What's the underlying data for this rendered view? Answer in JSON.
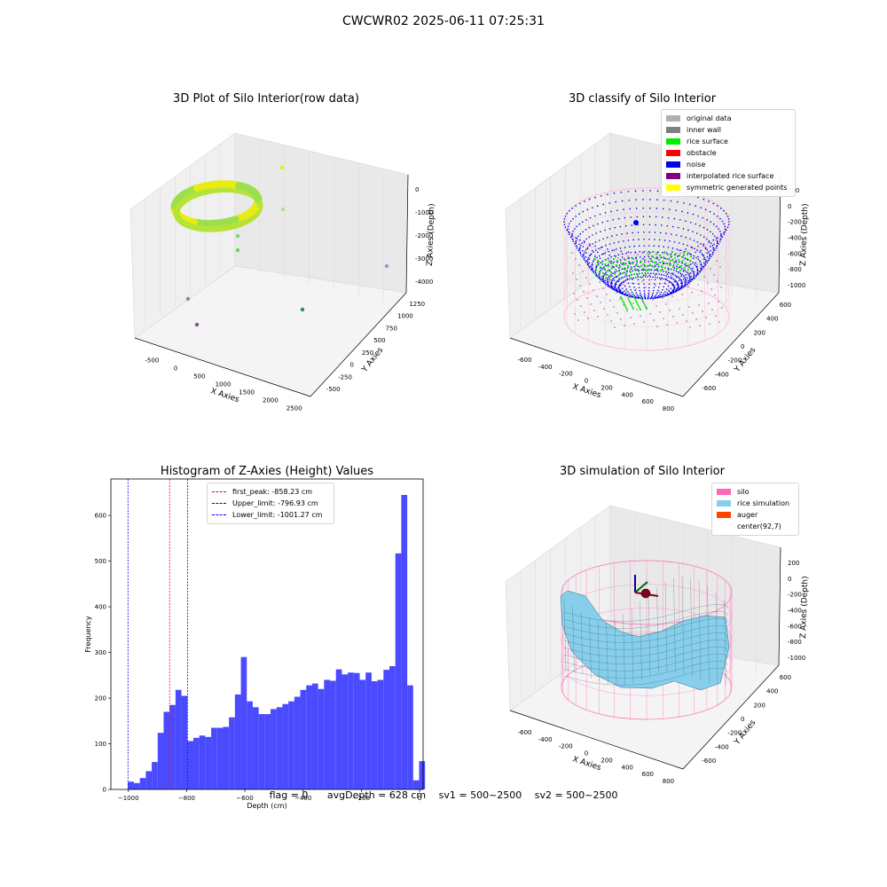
{
  "suptitle": "CWCWR02 2025-06-11 07:25:31",
  "colors": {
    "original": "#b0b0b0",
    "inner_wall": "#808080",
    "rice_surface": "#00ee00",
    "obstacle": "#ff0000",
    "noise": "#0000ee",
    "interpolated": "#800080",
    "symmetric": "#ffff00",
    "silo": "#ff69b4",
    "rice_sim": "#87ceeb",
    "auger": "#ff4500",
    "hist_bar": "#4a4aff",
    "peak_line": "#ff0000",
    "limit_line": "#0000ff"
  },
  "panels": {
    "raw": {
      "title": "3D Plot of Silo Interior(row data)",
      "xlabel": "X Axies",
      "ylabel": "Y Axies",
      "zlabel": "Z Axies (Depth)",
      "xticks": [
        "-500",
        "0",
        "500",
        "1000",
        "1500",
        "2000",
        "2500"
      ],
      "yticks": [
        "-500",
        "-250",
        "0",
        "250",
        "500",
        "750",
        "1000",
        "1250"
      ],
      "zticks": [
        "0",
        "-1000",
        "-2000",
        "-3000",
        "-4000"
      ]
    },
    "classify": {
      "title": "3D classify of Silo Interior",
      "xlabel": "X Axies",
      "ylabel": "Y Axies",
      "zlabel": "Z Axies (Depth)",
      "xticks": [
        "-600",
        "-400",
        "-200",
        "0",
        "200",
        "400",
        "600",
        "800"
      ],
      "yticks": [
        "-600",
        "-400",
        "-200",
        "0",
        "200",
        "400",
        "600"
      ],
      "zticks": [
        "200",
        "0",
        "-200",
        "-400",
        "-600",
        "-800",
        "-1000"
      ],
      "legend": [
        {
          "label": "original data",
          "color": "#b0b0b0"
        },
        {
          "label": "inner wall",
          "color": "#808080"
        },
        {
          "label": "rice surface",
          "color": "#00ee00"
        },
        {
          "label": "obstacle",
          "color": "#ff0000"
        },
        {
          "label": "noise",
          "color": "#0000ee"
        },
        {
          "label": "interpolated rice surface",
          "color": "#800080"
        },
        {
          "label": "symmetric generated points",
          "color": "#ffff00"
        }
      ]
    },
    "simulation": {
      "title": "3D simulation of Silo Interior",
      "xlabel": "X Axies",
      "ylabel": "Y Axies",
      "zlabel": "Z Axies (Depth)",
      "xticks": [
        "-600",
        "-400",
        "-200",
        "0",
        "200",
        "400",
        "600",
        "800"
      ],
      "yticks": [
        "-600",
        "-400",
        "-200",
        "0",
        "200",
        "400",
        "600"
      ],
      "zticks": [
        "200",
        "0",
        "-200",
        "-400",
        "-600",
        "-800",
        "-1000"
      ],
      "legend": [
        {
          "label": "silo",
          "color": "#ff69b4"
        },
        {
          "label": "rice simulation",
          "color": "#87ceeb"
        },
        {
          "label": "auger",
          "color": "#ff4500"
        },
        {
          "label": "center(92,7)",
          "color": ""
        }
      ]
    }
  },
  "chart_data": [
    {
      "type": "bar",
      "title": "Histogram of Z-Axies (Height) Values",
      "xlabel": "Depth (cm)",
      "ylabel": "Frequency",
      "xlim": [
        -1060,
        12
      ],
      "ylim": [
        0,
        680
      ],
      "xticks": [
        -1000,
        -800,
        -600,
        -400,
        -200,
        0
      ],
      "yticks": [
        0,
        100,
        200,
        300,
        400,
        500,
        600
      ],
      "bin_start": -1001.27,
      "bin_width": 20.4,
      "values": [
        17,
        14,
        25,
        40,
        60,
        124,
        170,
        185,
        218,
        205,
        106,
        113,
        118,
        115,
        135,
        135,
        137,
        158,
        208,
        290,
        193,
        180,
        165,
        165,
        176,
        180,
        187,
        193,
        203,
        218,
        228,
        232,
        220,
        240,
        238,
        263,
        252,
        256,
        255,
        240,
        256,
        237,
        240,
        262,
        270,
        517,
        645,
        228,
        20,
        62
      ],
      "vlines": [
        {
          "label": "first_peak: -858.23 cm",
          "x": -858.23,
          "color": "#ff0000"
        },
        {
          "label": "Upper_limit: -796.93 cm",
          "x": -796.93,
          "color": "#0000ff"
        },
        {
          "label": "Lower_limit: -1001.27 cm",
          "x": -1001.27,
          "color": "#0000ff"
        }
      ],
      "legend_position": "top-center"
    }
  ],
  "footer": {
    "flag": "flag = 0",
    "avg": "avgDepth = 628 cm",
    "sv1": "sv1 = 500~2500",
    "sv2": "sv2 = 500~2500"
  }
}
